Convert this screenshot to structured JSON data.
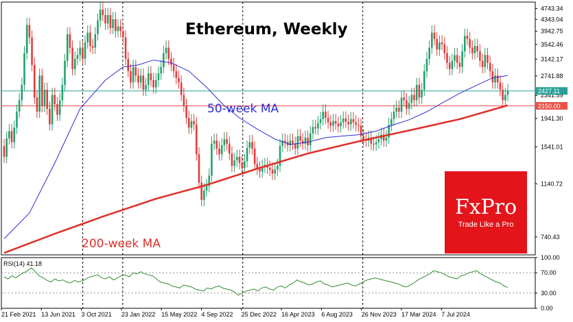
{
  "chart_data": {
    "type": "candlestick",
    "title": "Ethereum, Weekly",
    "timeframe": "Weekly",
    "y_axis": {
      "scale": "log",
      "ylim": [
        640,
        5000
      ],
      "ticks": [
        "4743.34",
        "4343.04",
        "3942.75",
        "3542.46",
        "3142.17",
        "2741.88",
        "2341.59",
        "1941.30",
        "1541.01",
        "1140.72",
        "740.43"
      ]
    },
    "x_axis": {
      "tick_labels": [
        "21 Feb 2021",
        "13 Jun 2021",
        "3 Oct 2021",
        "23 Jan 2022",
        "15 May 2022",
        "4 Sep 2022",
        "25 Dec 2022",
        "16 Apr 2023",
        "6 Aug 2023",
        "26 Nov 2023",
        "17 Mar 2024",
        "7 Jul 2024"
      ],
      "grid_lines_at": [
        "3 Oct 2021",
        "23 Jan 2022",
        "25 Dec 2022",
        "26 Nov 2023"
      ]
    },
    "price_markers": [
      {
        "label": "2427.11",
        "value": 2427.11,
        "color": "#2aa198",
        "kind": "current price"
      },
      {
        "label": "2150.00",
        "value": 2150,
        "color": "#e8524a",
        "kind": "support level"
      }
    ],
    "candles": [
      [
        1550,
        1420
      ],
      [
        1420,
        1650
      ],
      [
        1650,
        1750
      ],
      [
        1750,
        1600
      ],
      [
        1600,
        1800
      ],
      [
        1800,
        2050
      ],
      [
        2050,
        2250
      ],
      [
        2250,
        2550
      ],
      [
        2550,
        3300
      ],
      [
        3300,
        4150
      ],
      [
        4150,
        3750
      ],
      [
        3750,
        3000
      ],
      [
        3000,
        2300
      ],
      [
        2300,
        2050
      ],
      [
        2050,
        2750
      ],
      [
        2750,
        2150
      ],
      [
        2150,
        2450
      ],
      [
        2450,
        2100
      ],
      [
        2100,
        1850
      ],
      [
        1850,
        2350
      ],
      [
        2350,
        2180
      ],
      [
        2180,
        2000
      ],
      [
        2000,
        2250
      ],
      [
        2250,
        2550
      ],
      [
        2550,
        3100
      ],
      [
        3100,
        3850
      ],
      [
        3850,
        3450
      ],
      [
        3450,
        2900
      ],
      [
        2900,
        3150
      ],
      [
        3150,
        3250
      ],
      [
        3250,
        3450
      ],
      [
        3450,
        3150
      ],
      [
        3150,
        3600
      ],
      [
        3600,
        3900
      ],
      [
        3900,
        3500
      ],
      [
        3500,
        3450
      ],
      [
        3450,
        3850
      ],
      [
        3850,
        4300
      ],
      [
        4300,
        4700
      ],
      [
        4700,
        4500
      ],
      [
        4500,
        4200
      ],
      [
        4200,
        4500
      ],
      [
        4500,
        4050
      ],
      [
        4050,
        4350
      ],
      [
        4350,
        3950
      ],
      [
        3950,
        4100
      ],
      [
        4100,
        3950
      ],
      [
        3950,
        3750
      ],
      [
        3750,
        3150
      ],
      [
        3150,
        2850
      ],
      [
        2850,
        2600
      ],
      [
        2600,
        2950
      ],
      [
        2950,
        2750
      ],
      [
        2750,
        2600
      ],
      [
        2600,
        2750
      ],
      [
        2750,
        2450
      ],
      [
        2450,
        2550
      ],
      [
        2550,
        2800
      ],
      [
        2800,
        2650
      ],
      [
        2650,
        2500
      ],
      [
        2500,
        2650
      ],
      [
        2650,
        2800
      ],
      [
        2800,
        2950
      ],
      [
        2950,
        3300
      ],
      [
        3300,
        3450
      ],
      [
        3450,
        3150
      ],
      [
        3150,
        3000
      ],
      [
        3000,
        2850
      ],
      [
        2850,
        2700
      ],
      [
        2700,
        2600
      ],
      [
        2600,
        2350
      ],
      [
        2350,
        2150
      ],
      [
        2150,
        1950
      ],
      [
        1950,
        1800
      ],
      [
        1800,
        1900
      ],
      [
        1900,
        1850
      ],
      [
        1850,
        1450
      ],
      [
        1450,
        1150
      ],
      [
        1150,
        1000
      ],
      [
        1000,
        1080
      ],
      [
        1080,
        1120
      ],
      [
        1120,
        1220
      ],
      [
        1220,
        1580
      ],
      [
        1580,
        1620
      ],
      [
        1620,
        1520
      ],
      [
        1520,
        1450
      ],
      [
        1450,
        1560
      ],
      [
        1560,
        1640
      ],
      [
        1640,
        1580
      ],
      [
        1580,
        1460
      ],
      [
        1460,
        1320
      ],
      [
        1320,
        1380
      ],
      [
        1380,
        1420
      ],
      [
        1420,
        1350
      ],
      [
        1350,
        1300
      ],
      [
        1300,
        1370
      ],
      [
        1370,
        1530
      ],
      [
        1530,
        1600
      ],
      [
        1600,
        1520
      ],
      [
        1520,
        1340
      ],
      [
        1340,
        1290
      ],
      [
        1290,
        1260
      ],
      [
        1260,
        1310
      ],
      [
        1310,
        1330
      ],
      [
        1330,
        1300
      ],
      [
        1300,
        1280
      ],
      [
        1280,
        1240
      ],
      [
        1240,
        1280
      ],
      [
        1280,
        1320
      ],
      [
        1320,
        1550
      ],
      [
        1550,
        1620
      ],
      [
        1620,
        1600
      ],
      [
        1600,
        1560
      ],
      [
        1560,
        1620
      ],
      [
        1620,
        1580
      ],
      [
        1580,
        1520
      ],
      [
        1520,
        1680
      ],
      [
        1680,
        1620
      ],
      [
        1620,
        1580
      ],
      [
        1580,
        1660
      ],
      [
        1660,
        1560
      ],
      [
        1560,
        1720
      ],
      [
        1720,
        1810
      ],
      [
        1810,
        1790
      ],
      [
        1790,
        1870
      ],
      [
        1870,
        1930
      ],
      [
        1930,
        2050
      ],
      [
        2050,
        1950
      ],
      [
        1950,
        1880
      ],
      [
        1880,
        1830
      ],
      [
        1830,
        1900
      ],
      [
        1900,
        1860
      ],
      [
        1860,
        1820
      ],
      [
        1820,
        1880
      ],
      [
        1880,
        1940
      ],
      [
        1940,
        1890
      ],
      [
        1890,
        1850
      ],
      [
        1850,
        1930
      ],
      [
        1930,
        1880
      ],
      [
        1880,
        1840
      ],
      [
        1840,
        1830
      ],
      [
        1830,
        1680
      ],
      [
        1680,
        1640
      ],
      [
        1640,
        1620
      ],
      [
        1620,
        1660
      ],
      [
        1660,
        1580
      ],
      [
        1580,
        1570
      ],
      [
        1570,
        1600
      ],
      [
        1600,
        1640
      ],
      [
        1640,
        1700
      ],
      [
        1700,
        1620
      ],
      [
        1620,
        1660
      ],
      [
        1660,
        1840
      ],
      [
        1840,
        1930
      ],
      [
        1930,
        2050
      ],
      [
        2050,
        2120
      ],
      [
        2120,
        2050
      ],
      [
        2050,
        2300
      ],
      [
        2300,
        2250
      ],
      [
        2250,
        2100
      ],
      [
        2100,
        2200
      ],
      [
        2200,
        2350
      ],
      [
        2350,
        2250
      ],
      [
        2250,
        2550
      ],
      [
        2550,
        2300
      ],
      [
        2300,
        2450
      ],
      [
        2450,
        2850
      ],
      [
        2850,
        3150
      ],
      [
        3150,
        3450
      ],
      [
        3450,
        3900
      ],
      [
        3900,
        3700
      ],
      [
        3700,
        3400
      ],
      [
        3400,
        3600
      ],
      [
        3600,
        3550
      ],
      [
        3550,
        3300
      ],
      [
        3300,
        3050
      ],
      [
        3050,
        2900
      ],
      [
        2900,
        3100
      ],
      [
        3100,
        3250
      ],
      [
        3250,
        3050
      ],
      [
        3050,
        2950
      ],
      [
        2950,
        3350
      ],
      [
        3350,
        3800
      ],
      [
        3800,
        3700
      ],
      [
        3700,
        3450
      ],
      [
        3450,
        3300
      ],
      [
        3300,
        3500
      ],
      [
        3500,
        3350
      ],
      [
        3350,
        3100
      ],
      [
        3100,
        2950
      ],
      [
        2950,
        3250
      ],
      [
        3250,
        3050
      ],
      [
        3050,
        2850
      ],
      [
        2850,
        2600
      ],
      [
        2600,
        2750
      ],
      [
        2750,
        2600
      ],
      [
        2600,
        2450
      ],
      [
        2450,
        2250
      ],
      [
        2250,
        2350
      ],
      [
        2350,
        2427
      ]
    ],
    "series": [
      {
        "name": "50-week MA",
        "color": "#2b2bd6",
        "values": [
          {
            "week": 0,
            "value": 730
          },
          {
            "week": 10,
            "value": 900
          },
          {
            "week": 20,
            "value": 1350
          },
          {
            "week": 30,
            "value": 2100
          },
          {
            "week": 40,
            "value": 2650
          },
          {
            "week": 47,
            "value": 2950
          },
          {
            "week": 53,
            "value": 3000
          },
          {
            "week": 59,
            "value": 3120
          },
          {
            "week": 66,
            "value": 3050
          },
          {
            "week": 73,
            "value": 2850
          },
          {
            "week": 80,
            "value": 2500
          },
          {
            "week": 87,
            "value": 2150
          },
          {
            "week": 93,
            "value": 1950
          },
          {
            "week": 100,
            "value": 1780
          },
          {
            "week": 107,
            "value": 1640
          },
          {
            "week": 113,
            "value": 1570
          },
          {
            "week": 120,
            "value": 1600
          },
          {
            "week": 127,
            "value": 1660
          },
          {
            "week": 133,
            "value": 1680
          },
          {
            "week": 140,
            "value": 1700
          },
          {
            "week": 147,
            "value": 1750
          },
          {
            "week": 153,
            "value": 1830
          },
          {
            "week": 160,
            "value": 1920
          },
          {
            "week": 167,
            "value": 2050
          },
          {
            "week": 173,
            "value": 2200
          },
          {
            "week": 180,
            "value": 2380
          },
          {
            "week": 187,
            "value": 2550
          },
          {
            "week": 193,
            "value": 2700
          },
          {
            "week": 199,
            "value": 2750
          }
        ]
      },
      {
        "name": "200-week MA",
        "color": "#e0302a",
        "values": [
          {
            "week": 0,
            "value": 650
          },
          {
            "week": 20,
            "value": 760
          },
          {
            "week": 40,
            "value": 880
          },
          {
            "week": 60,
            "value": 1010
          },
          {
            "week": 80,
            "value": 1130
          },
          {
            "week": 100,
            "value": 1290
          },
          {
            "week": 120,
            "value": 1460
          },
          {
            "week": 140,
            "value": 1610
          },
          {
            "week": 160,
            "value": 1760
          },
          {
            "week": 180,
            "value": 1930
          },
          {
            "week": 199,
            "value": 2160
          }
        ]
      }
    ],
    "rsi": {
      "label": "RSI(14) 41.18",
      "ylim": [
        0,
        100
      ],
      "ticks": [
        "100.00",
        "70.00",
        "30.00",
        "0.00"
      ],
      "levels": [
        70,
        30
      ],
      "color": "#2e8b2e",
      "values": [
        62,
        58,
        64,
        60,
        66,
        70,
        74,
        80,
        72,
        64,
        60,
        55,
        52,
        58,
        54,
        56,
        52,
        50,
        55,
        52,
        54,
        58,
        62,
        64,
        66,
        60,
        58,
        62,
        56,
        60,
        64,
        66,
        62,
        70,
        68,
        72,
        68,
        66,
        64,
        58,
        52,
        50,
        48,
        44,
        42,
        40,
        46,
        44,
        42,
        38,
        36,
        34,
        40,
        38,
        42,
        44,
        40,
        38,
        36,
        32,
        26,
        30,
        34,
        36,
        38,
        34,
        40,
        42,
        38,
        36,
        42,
        44,
        40,
        46,
        50,
        56,
        52,
        50,
        46,
        48,
        52,
        54,
        48,
        46,
        42,
        44,
        46,
        48,
        50,
        46,
        44,
        48,
        52,
        56,
        58,
        60,
        58,
        56,
        54,
        52,
        50,
        48,
        44,
        42,
        46,
        50,
        56,
        60,
        64,
        68,
        74,
        72,
        70,
        66,
        62,
        60,
        58,
        64,
        66,
        70,
        72,
        74,
        68,
        64,
        60,
        56,
        52,
        50,
        44,
        41
      ]
    },
    "annotations": [
      {
        "text": "50-week MA",
        "color": "#2b2bd6"
      },
      {
        "text": "200-week MA",
        "color": "#e0302a"
      }
    ],
    "logo": {
      "name": "FxPro",
      "tagline": "Trade Like a Pro",
      "bg": "#e4141b"
    }
  }
}
